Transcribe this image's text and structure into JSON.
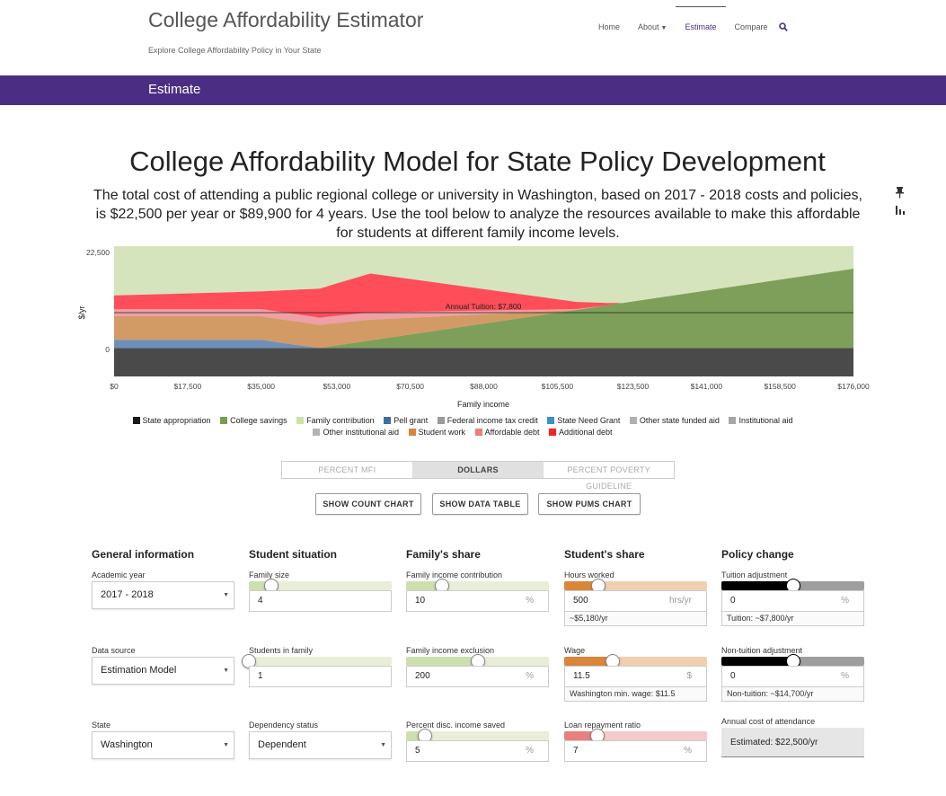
{
  "site": {
    "title": "College Affordability Estimator",
    "tagline": "Explore College Affordability Policy in Your State"
  },
  "nav": {
    "items": [
      {
        "label": "Home",
        "active": false
      },
      {
        "label": "About",
        "active": false,
        "dropdown": true
      },
      {
        "label": "Estimate",
        "active": true
      },
      {
        "label": "Compare",
        "active": false
      }
    ],
    "search_icon": "search-icon"
  },
  "page_bar": {
    "title": "Estimate",
    "color": "#4b2e83"
  },
  "main": {
    "title": "College Affordability Model for State Policy Development",
    "description": "The total cost of attending a public regional college or university in Washington, based on 2017 - 2018 costs and policies, is $22,500 per year or $89,900 for 4 years. Use the tool below to analyze the resources available to make this affordable for students at different family income levels.",
    "side_icons": [
      "pin-icon",
      "bar-chart-icon"
    ]
  },
  "chart_data": {
    "type": "area",
    "xlabel": "Family income",
    "ylabel": "$/yr",
    "x_ticks": [
      "$0",
      "$17,500",
      "$35,000",
      "$53,000",
      "$70,500",
      "$88,000",
      "$105,500",
      "$123,500",
      "$141,000",
      "$158,500",
      "$176,000"
    ],
    "y_ticks": [
      "22,500",
      "0"
    ],
    "xlim": [
      0,
      176000
    ],
    "ylim": [
      -6300,
      22500
    ],
    "annotation": "Annual Tuition: $7,800",
    "tuition_line": 7800,
    "legend_position": "bottom",
    "legend": [
      {
        "name": "State appropriation",
        "color": "#1a1a1a"
      },
      {
        "name": "College savings",
        "color": "#7a9e50"
      },
      {
        "name": "Family contribution",
        "color": "#cfe0a8"
      },
      {
        "name": "Pell grant",
        "color": "#3b6ea5"
      },
      {
        "name": "Federal income tax credit",
        "color": "#9a9a9a"
      },
      {
        "name": "State Need Grant",
        "color": "#3b8fcf"
      },
      {
        "name": "Other state funded aid",
        "color": "#b0b0b0"
      },
      {
        "name": "Institutional aid",
        "color": "#a6a6a6"
      },
      {
        "name": "Other institutional aid",
        "color": "#b3b3b3"
      },
      {
        "name": "Student work",
        "color": "#d9863a"
      },
      {
        "name": "Affordable debt",
        "color": "#e88080"
      },
      {
        "name": "Additional debt",
        "color": "#ff2020"
      }
    ],
    "series": [
      {
        "name": "State appropriation",
        "x": [
          0,
          176000
        ],
        "values": [
          -6300,
          -6300
        ],
        "color": "#4a4a4a"
      },
      {
        "name": "College savings",
        "x": [
          0,
          49000,
          176000
        ],
        "values": [
          0,
          0,
          17500
        ],
        "color": "#7d9f5a"
      },
      {
        "name": "Family contribution",
        "x": [
          0,
          49000,
          121000,
          176000
        ],
        "values": [
          0,
          0,
          22500,
          22500
        ],
        "color": "#d6e4bd"
      },
      {
        "name": "Pell grant",
        "x": [
          0,
          35000,
          43000,
          49000,
          53000,
          57000,
          61000
        ],
        "values": [
          1800,
          1800,
          700,
          0,
          0,
          0,
          0
        ],
        "color": "#6d8fba"
      },
      {
        "name": "State Need Grant",
        "x": [
          0,
          35000,
          42000,
          49000,
          56000,
          61000
        ],
        "values": [
          3600,
          3600,
          2200,
          1700,
          1200,
          0
        ],
        "color": "#5f9fd0"
      },
      {
        "name": "Student work",
        "x": [
          0,
          35000,
          44000,
          52000,
          61000,
          110000
        ],
        "values": [
          5200,
          5200,
          5200,
          5000,
          4600,
          0
        ],
        "color": "#d29b65"
      },
      {
        "name": "Affordable debt",
        "x": [
          0,
          35000,
          44000,
          52000,
          61000,
          117000
        ],
        "values": [
          1600,
          1600,
          1600,
          1600,
          1600,
          0
        ],
        "color": "#ef9fa6"
      },
      {
        "name": "Additional debt",
        "x": [
          0,
          35000,
          61000,
          121000
        ],
        "values": [
          3000,
          3900,
          8600,
          0
        ],
        "color": "#ff4d5a"
      }
    ]
  },
  "view_toggle": {
    "options": [
      "PERCENT MFI",
      "DOLLARS",
      "PERCENT POVERTY GUIDELINE"
    ],
    "selected": "DOLLARS"
  },
  "buttons": {
    "count_chart": "SHOW COUNT CHART",
    "data_table": "SHOW DATA TABLE",
    "pums_chart": "SHOW PUMS CHART"
  },
  "controls": {
    "general": {
      "heading": "General information",
      "academic_year": {
        "label": "Academic year",
        "value": "2017 - 2018"
      },
      "data_source": {
        "label": "Data source",
        "value": "Estimation Model"
      },
      "state": {
        "label": "State",
        "value": "Washington"
      }
    },
    "student_situation": {
      "heading": "Student situation",
      "family_size": {
        "label": "Family size",
        "value": "4",
        "level": 0.16
      },
      "students_in_family": {
        "label": "Students in family",
        "value": "1",
        "level": 0.0
      },
      "dependency_status": {
        "label": "Dependency status",
        "value": "Dependent"
      }
    },
    "family_share": {
      "heading": "Family's share",
      "income_contribution": {
        "label": "Family income contribution",
        "value": "10",
        "unit": "%",
        "level": 0.25
      },
      "income_exclusion": {
        "label": "Family income exclusion",
        "value": "200",
        "unit": "%",
        "level": 0.5
      },
      "disc_income_saved": {
        "label": "Percent disc. income saved",
        "value": "5",
        "unit": "%",
        "level": 0.13
      }
    },
    "student_share": {
      "heading": "Student's share",
      "hours_worked": {
        "label": "Hours worked",
        "value": "500",
        "unit": "hrs/yr",
        "note": "~$5,180/yr",
        "level": 0.24
      },
      "wage": {
        "label": "Wage",
        "value": "11.5",
        "unit": "$",
        "note": "Washington min. wage: $11.5",
        "level": 0.34
      },
      "loan_repayment": {
        "label": "Loan repayment ratio",
        "value": "7",
        "unit": "%",
        "level": 0.23
      }
    },
    "policy_change": {
      "heading": "Policy change",
      "tuition_adjustment": {
        "label": "Tuition adjustment",
        "value": "0",
        "unit": "%",
        "note": "Tuition: ~$7,800/yr",
        "level": 0.5
      },
      "non_tuition_adjustment": {
        "label": "Non-tuition adjustment",
        "value": "0",
        "unit": "%",
        "note": "Non-tuition: ~$14,700/yr",
        "level": 0.5
      },
      "annual_cost": {
        "label": "Annual cost of attendance",
        "value": "Estimated: $22,500/yr"
      }
    }
  }
}
